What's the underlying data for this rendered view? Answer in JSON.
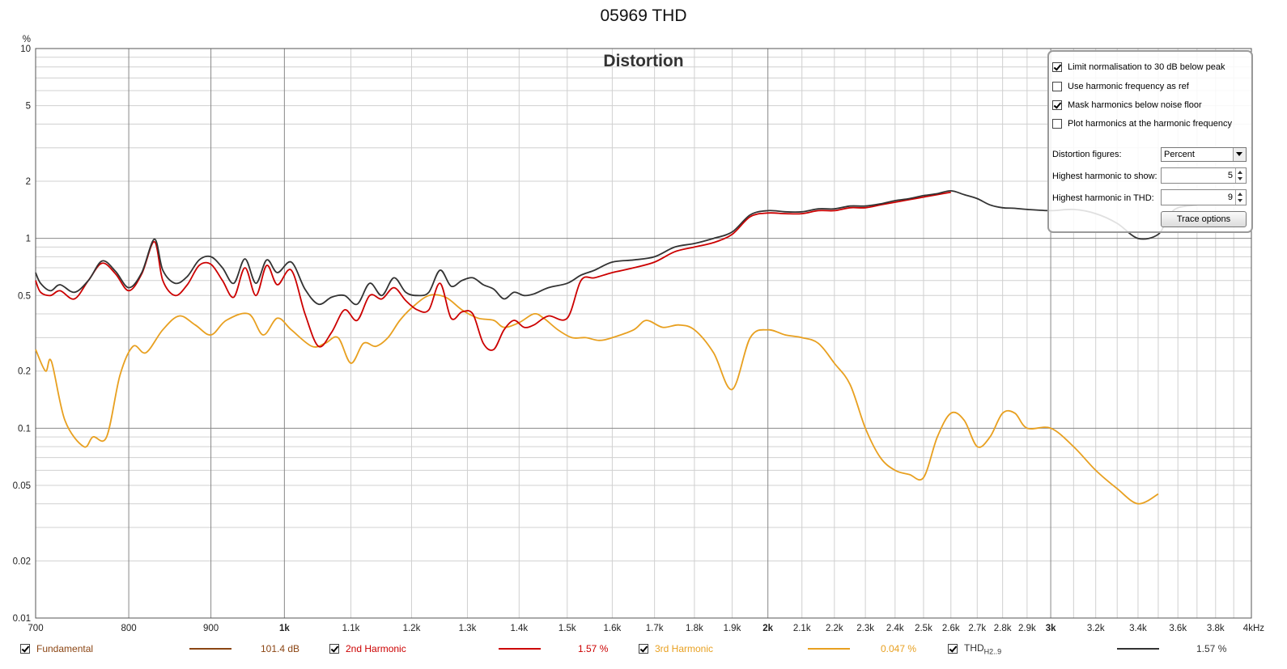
{
  "title": "05969 THD",
  "chart_data": {
    "type": "line",
    "title": "Distortion",
    "x_scale": "log",
    "y_scale": "log",
    "xlim": [
      700,
      4000
    ],
    "ylim": [
      0.01,
      10
    ],
    "yunit": "%",
    "x_major_ticks": [
      700,
      800,
      900,
      1000,
      2000,
      3000,
      4000
    ],
    "x_tick_labels": [
      {
        "v": 700,
        "t": "700"
      },
      {
        "v": 800,
        "t": "800"
      },
      {
        "v": 900,
        "t": "900"
      },
      {
        "v": 1000,
        "t": "1k"
      },
      {
        "v": 1100,
        "t": "1.1k"
      },
      {
        "v": 1200,
        "t": "1.2k"
      },
      {
        "v": 1300,
        "t": "1.3k"
      },
      {
        "v": 1400,
        "t": "1.4k"
      },
      {
        "v": 1500,
        "t": "1.5k"
      },
      {
        "v": 1600,
        "t": "1.6k"
      },
      {
        "v": 1700,
        "t": "1.7k"
      },
      {
        "v": 1800,
        "t": "1.8k"
      },
      {
        "v": 1900,
        "t": "1.9k"
      },
      {
        "v": 2000,
        "t": "2k"
      },
      {
        "v": 2100,
        "t": "2.1k"
      },
      {
        "v": 2200,
        "t": "2.2k"
      },
      {
        "v": 2300,
        "t": "2.3k"
      },
      {
        "v": 2400,
        "t": "2.4k"
      },
      {
        "v": 2500,
        "t": "2.5k"
      },
      {
        "v": 2600,
        "t": "2.6k"
      },
      {
        "v": 2700,
        "t": "2.7k"
      },
      {
        "v": 2800,
        "t": "2.8k"
      },
      {
        "v": 2900,
        "t": "2.9k"
      },
      {
        "v": 3000,
        "t": "3k"
      },
      {
        "v": 3200,
        "t": "3.2k"
      },
      {
        "v": 3400,
        "t": "3.4k"
      },
      {
        "v": 3600,
        "t": "3.6k"
      },
      {
        "v": 3800,
        "t": "3.8k"
      },
      {
        "v": 4000,
        "t": "4kHz"
      }
    ],
    "x_bold_labels": [
      1000,
      2000,
      3000
    ],
    "y_tick_labels": [
      {
        "v": 10,
        "t": "10"
      },
      {
        "v": 5,
        "t": "5"
      },
      {
        "v": 2,
        "t": "2"
      },
      {
        "v": 1,
        "t": "1"
      },
      {
        "v": 0.5,
        "t": "0.5"
      },
      {
        "v": 0.2,
        "t": "0.2"
      },
      {
        "v": 0.1,
        "t": "0.1"
      },
      {
        "v": 0.05,
        "t": "0.05"
      },
      {
        "v": 0.02,
        "t": "0.02"
      },
      {
        "v": 0.01,
        "t": "0.01"
      }
    ],
    "grid": true,
    "series": [
      {
        "name": "3rd Harmonic",
        "color": "#e8a020",
        "points": [
          [
            700,
            0.26
          ],
          [
            710,
            0.2
          ],
          [
            716,
            0.225
          ],
          [
            730,
            0.11
          ],
          [
            750,
            0.08
          ],
          [
            760,
            0.09
          ],
          [
            775,
            0.09
          ],
          [
            790,
            0.19
          ],
          [
            805,
            0.27
          ],
          [
            820,
            0.25
          ],
          [
            840,
            0.33
          ],
          [
            860,
            0.39
          ],
          [
            880,
            0.35
          ],
          [
            900,
            0.31
          ],
          [
            920,
            0.37
          ],
          [
            950,
            0.4
          ],
          [
            970,
            0.31
          ],
          [
            990,
            0.38
          ],
          [
            1010,
            0.33
          ],
          [
            1040,
            0.27
          ],
          [
            1060,
            0.28
          ],
          [
            1080,
            0.3
          ],
          [
            1100,
            0.22
          ],
          [
            1120,
            0.28
          ],
          [
            1140,
            0.27
          ],
          [
            1160,
            0.3
          ],
          [
            1180,
            0.37
          ],
          [
            1200,
            0.43
          ],
          [
            1230,
            0.5
          ],
          [
            1260,
            0.49
          ],
          [
            1290,
            0.42
          ],
          [
            1320,
            0.38
          ],
          [
            1350,
            0.37
          ],
          [
            1370,
            0.34
          ],
          [
            1400,
            0.36
          ],
          [
            1430,
            0.4
          ],
          [
            1450,
            0.38
          ],
          [
            1480,
            0.33
          ],
          [
            1510,
            0.3
          ],
          [
            1540,
            0.3
          ],
          [
            1570,
            0.29
          ],
          [
            1600,
            0.3
          ],
          [
            1650,
            0.33
          ],
          [
            1680,
            0.37
          ],
          [
            1720,
            0.34
          ],
          [
            1760,
            0.35
          ],
          [
            1800,
            0.33
          ],
          [
            1850,
            0.25
          ],
          [
            1900,
            0.16
          ],
          [
            1950,
            0.3
          ],
          [
            2000,
            0.33
          ],
          [
            2050,
            0.31
          ],
          [
            2100,
            0.3
          ],
          [
            2150,
            0.28
          ],
          [
            2200,
            0.22
          ],
          [
            2250,
            0.17
          ],
          [
            2300,
            0.1
          ],
          [
            2350,
            0.07
          ],
          [
            2400,
            0.06
          ],
          [
            2450,
            0.057
          ],
          [
            2500,
            0.055
          ],
          [
            2550,
            0.09
          ],
          [
            2600,
            0.12
          ],
          [
            2650,
            0.11
          ],
          [
            2700,
            0.08
          ],
          [
            2750,
            0.09
          ],
          [
            2800,
            0.12
          ],
          [
            2850,
            0.12
          ],
          [
            2900,
            0.1
          ],
          [
            3000,
            0.1
          ],
          [
            3100,
            0.08
          ],
          [
            3200,
            0.06
          ],
          [
            3300,
            0.048
          ],
          [
            3400,
            0.04
          ],
          [
            3500,
            0.045
          ]
        ]
      },
      {
        "name": "2nd Harmonic",
        "color": "#cc0000",
        "points": [
          [
            700,
            0.6
          ],
          [
            705,
            0.52
          ],
          [
            715,
            0.5
          ],
          [
            725,
            0.53
          ],
          [
            740,
            0.48
          ],
          [
            755,
            0.6
          ],
          [
            770,
            0.74
          ],
          [
            785,
            0.65
          ],
          [
            800,
            0.53
          ],
          [
            815,
            0.65
          ],
          [
            830,
            0.96
          ],
          [
            840,
            0.6
          ],
          [
            855,
            0.5
          ],
          [
            870,
            0.57
          ],
          [
            885,
            0.72
          ],
          [
            900,
            0.73
          ],
          [
            915,
            0.6
          ],
          [
            930,
            0.49
          ],
          [
            945,
            0.7
          ],
          [
            960,
            0.5
          ],
          [
            975,
            0.72
          ],
          [
            990,
            0.57
          ],
          [
            1010,
            0.68
          ],
          [
            1030,
            0.4
          ],
          [
            1050,
            0.27
          ],
          [
            1070,
            0.32
          ],
          [
            1090,
            0.42
          ],
          [
            1110,
            0.37
          ],
          [
            1130,
            0.5
          ],
          [
            1150,
            0.48
          ],
          [
            1170,
            0.55
          ],
          [
            1190,
            0.47
          ],
          [
            1210,
            0.42
          ],
          [
            1230,
            0.42
          ],
          [
            1250,
            0.58
          ],
          [
            1270,
            0.38
          ],
          [
            1290,
            0.41
          ],
          [
            1310,
            0.4
          ],
          [
            1330,
            0.28
          ],
          [
            1350,
            0.26
          ],
          [
            1370,
            0.33
          ],
          [
            1390,
            0.37
          ],
          [
            1410,
            0.34
          ],
          [
            1430,
            0.35
          ],
          [
            1460,
            0.39
          ],
          [
            1500,
            0.38
          ],
          [
            1530,
            0.6
          ],
          [
            1560,
            0.62
          ],
          [
            1600,
            0.66
          ],
          [
            1650,
            0.7
          ],
          [
            1700,
            0.75
          ],
          [
            1750,
            0.85
          ],
          [
            1800,
            0.9
          ],
          [
            1850,
            0.95
          ],
          [
            1900,
            1.05
          ],
          [
            1950,
            1.3
          ],
          [
            2000,
            1.36
          ],
          [
            2050,
            1.35
          ],
          [
            2100,
            1.35
          ],
          [
            2150,
            1.4
          ],
          [
            2200,
            1.4
          ],
          [
            2250,
            1.45
          ],
          [
            2300,
            1.45
          ],
          [
            2350,
            1.5
          ],
          [
            2400,
            1.55
          ],
          [
            2450,
            1.6
          ],
          [
            2500,
            1.65
          ],
          [
            2550,
            1.7
          ],
          [
            2600,
            1.75
          ]
        ]
      },
      {
        "name": "THD H2..9",
        "color": "#333333",
        "points": [
          [
            700,
            0.66
          ],
          [
            705,
            0.58
          ],
          [
            715,
            0.53
          ],
          [
            725,
            0.57
          ],
          [
            740,
            0.52
          ],
          [
            755,
            0.6
          ],
          [
            770,
            0.76
          ],
          [
            785,
            0.67
          ],
          [
            800,
            0.55
          ],
          [
            815,
            0.66
          ],
          [
            830,
            0.99
          ],
          [
            840,
            0.68
          ],
          [
            855,
            0.58
          ],
          [
            870,
            0.63
          ],
          [
            885,
            0.77
          ],
          [
            900,
            0.8
          ],
          [
            915,
            0.7
          ],
          [
            930,
            0.58
          ],
          [
            945,
            0.78
          ],
          [
            960,
            0.58
          ],
          [
            975,
            0.77
          ],
          [
            990,
            0.66
          ],
          [
            1010,
            0.75
          ],
          [
            1030,
            0.54
          ],
          [
            1050,
            0.45
          ],
          [
            1070,
            0.49
          ],
          [
            1090,
            0.5
          ],
          [
            1110,
            0.45
          ],
          [
            1130,
            0.58
          ],
          [
            1150,
            0.5
          ],
          [
            1170,
            0.62
          ],
          [
            1190,
            0.52
          ],
          [
            1210,
            0.5
          ],
          [
            1230,
            0.52
          ],
          [
            1250,
            0.68
          ],
          [
            1270,
            0.56
          ],
          [
            1290,
            0.6
          ],
          [
            1310,
            0.62
          ],
          [
            1330,
            0.57
          ],
          [
            1350,
            0.54
          ],
          [
            1370,
            0.48
          ],
          [
            1390,
            0.52
          ],
          [
            1410,
            0.5
          ],
          [
            1430,
            0.51
          ],
          [
            1460,
            0.55
          ],
          [
            1500,
            0.58
          ],
          [
            1530,
            0.64
          ],
          [
            1560,
            0.68
          ],
          [
            1600,
            0.75
          ],
          [
            1650,
            0.77
          ],
          [
            1700,
            0.8
          ],
          [
            1750,
            0.9
          ],
          [
            1800,
            0.94
          ],
          [
            1850,
            1.0
          ],
          [
            1900,
            1.08
          ],
          [
            1950,
            1.33
          ],
          [
            2000,
            1.4
          ],
          [
            2050,
            1.38
          ],
          [
            2100,
            1.38
          ],
          [
            2150,
            1.43
          ],
          [
            2200,
            1.43
          ],
          [
            2250,
            1.48
          ],
          [
            2300,
            1.48
          ],
          [
            2350,
            1.52
          ],
          [
            2400,
            1.58
          ],
          [
            2450,
            1.62
          ],
          [
            2500,
            1.68
          ],
          [
            2550,
            1.72
          ],
          [
            2600,
            1.78
          ],
          [
            2650,
            1.7
          ],
          [
            2700,
            1.62
          ],
          [
            2750,
            1.5
          ],
          [
            2800,
            1.45
          ],
          [
            2850,
            1.44
          ],
          [
            2900,
            1.42
          ],
          [
            3000,
            1.4
          ],
          [
            3100,
            1.42
          ],
          [
            3200,
            1.35
          ],
          [
            3300,
            1.2
          ],
          [
            3400,
            1.0
          ],
          [
            3500,
            1.05
          ],
          [
            3550,
            1.3
          ],
          [
            3600,
            1.45
          ],
          [
            3700,
            1.5
          ]
        ]
      }
    ]
  },
  "options": {
    "limit_norm": {
      "label": "Limit normalisation to 30 dB below peak",
      "checked": true
    },
    "use_harm_freq": {
      "label": "Use harmonic frequency as ref",
      "checked": false
    },
    "mask_noise": {
      "label": "Mask harmonics below noise floor",
      "checked": true
    },
    "plot_at_harm": {
      "label": "Plot harmonics at the harmonic frequency",
      "checked": false
    },
    "distortion_figures_label": "Distortion figures:",
    "distortion_figures_value": "Percent",
    "highest_show_label": "Highest harmonic to show:",
    "highest_show_value": "5",
    "highest_thd_label": "Highest harmonic in THD:",
    "highest_thd_value": "9",
    "trace_options_label": "Trace options"
  },
  "legend": [
    {
      "label": "Fundamental",
      "value": "101.4 dB",
      "color": "#8b4513",
      "checked": true
    },
    {
      "label": "2nd Harmonic",
      "value": "1.57 %",
      "color": "#cc0000",
      "checked": true
    },
    {
      "label": "3rd Harmonic",
      "value": "0.047 %",
      "color": "#e8a020",
      "checked": true
    },
    {
      "label": "THD",
      "sub": "H2..9",
      "value": "1.57 %",
      "color": "#333333",
      "checked": true
    }
  ]
}
